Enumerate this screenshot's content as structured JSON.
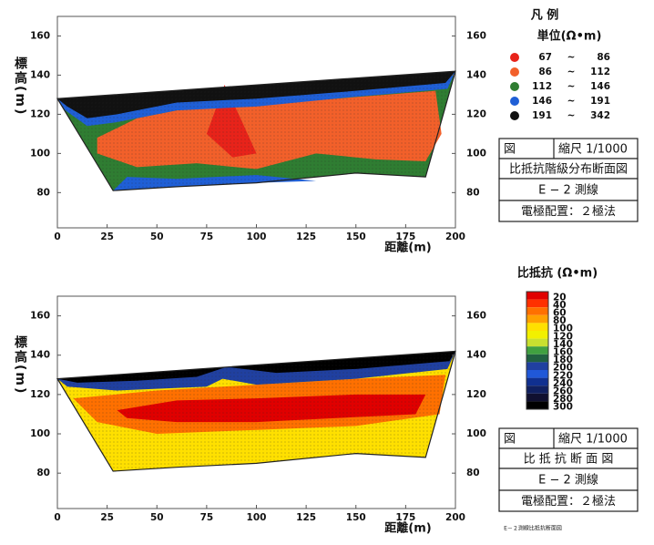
{
  "chart_data": [
    {
      "type": "section",
      "x_label": "距離(m)",
      "y_label": "標高(m)",
      "xlim": [
        0,
        200
      ],
      "ylim": [
        62,
        170
      ],
      "xticks": [
        0,
        25,
        50,
        75,
        100,
        125,
        150,
        175,
        200
      ],
      "yticks": [
        80,
        100,
        120,
        140,
        160
      ],
      "y2lim": [
        62,
        170
      ],
      "y2ticks": [
        80,
        100,
        120,
        140,
        160
      ],
      "legend": {
        "title": "凡 例",
        "unit": "単位(Ω•m)",
        "separator": "~",
        "classes": [
          {
            "min": 67,
            "max": 86,
            "color": "#e8231a"
          },
          {
            "min": 86,
            "max": 112,
            "color": "#f2602a"
          },
          {
            "min": 112,
            "max": 146,
            "color": "#2f7d32"
          },
          {
            "min": 146,
            "max": 191,
            "color": "#1f5fd6"
          },
          {
            "min": 191,
            "max": 342,
            "color": "#111111"
          }
        ]
      },
      "outline": {
        "x": [
          0,
          200,
          185,
          150,
          100,
          60,
          28
        ],
        "y": [
          128,
          142,
          88,
          90,
          85,
          83,
          81
        ]
      },
      "zones": [
        {
          "range": [
            112,
            146
          ],
          "x": [
            0,
            200,
            185,
            150,
            100,
            60,
            28
          ],
          "y": [
            128,
            142,
            88,
            90,
            85,
            83,
            81
          ]
        },
        {
          "range": [
            146,
            191
          ],
          "x": [
            28,
            60,
            100,
            130,
            100,
            60,
            35
          ],
          "y": [
            81,
            83,
            85,
            86,
            89,
            87,
            88
          ]
        },
        {
          "range": [
            86,
            112
          ],
          "x": [
            20,
            40,
            80,
            100,
            140,
            190,
            193,
            185,
            160,
            130,
            100,
            70,
            40,
            20
          ],
          "y": [
            108,
            118,
            126,
            125,
            128,
            132,
            110,
            96,
            97,
            100,
            92,
            95,
            93,
            100
          ]
        },
        {
          "range": [
            67,
            86
          ],
          "x": [
            75,
            84,
            92,
            100,
            88
          ],
          "y": [
            110,
            135,
            118,
            100,
            98
          ]
        },
        {
          "range": [
            146,
            191
          ],
          "x": [
            0,
            200,
            196,
            150,
            100,
            60,
            30,
            15,
            4
          ],
          "y": [
            128,
            142,
            133,
            129,
            124,
            122,
            116,
            114,
            122
          ]
        },
        {
          "range": [
            191,
            342
          ],
          "x": [
            0,
            200,
            195,
            150,
            100,
            60,
            30,
            15,
            5
          ],
          "y": [
            128,
            142,
            136,
            132,
            128,
            126,
            120,
            118,
            124
          ]
        }
      ],
      "info_box": {
        "figure": "図",
        "scale": "縮尺 1/1000",
        "title": "比抵抗階級分布断面図",
        "line": "E − 2 測線",
        "electrode": "電極配置：２極法"
      }
    },
    {
      "type": "section",
      "x_label": "距離(m)",
      "y_label": "標高(m)",
      "xlim": [
        0,
        200
      ],
      "ylim": [
        62,
        170
      ],
      "xticks": [
        0,
        25,
        50,
        75,
        100,
        125,
        150,
        175,
        200
      ],
      "yticks": [
        80,
        100,
        120,
        140,
        160
      ],
      "y2lim": [
        62,
        170
      ],
      "y2ticks": [
        80,
        100,
        120,
        140,
        160
      ],
      "colorbar": {
        "title": "比抵抗 (Ω•m)",
        "ticks": [
          20,
          40,
          60,
          80,
          100,
          120,
          140,
          160,
          180,
          200,
          220,
          240,
          260,
          280,
          300
        ],
        "colors": [
          "#e00000",
          "#ff3000",
          "#ff7000",
          "#ffa000",
          "#ffe000",
          "#f2f000",
          "#c8e030",
          "#40a040",
          "#206040",
          "#2040a0",
          "#2058d8",
          "#103090",
          "#102060",
          "#101030",
          "#000000"
        ]
      },
      "outline": {
        "x": [
          0,
          200,
          185,
          150,
          100,
          60,
          28
        ],
        "y": [
          128,
          142,
          88,
          90,
          85,
          83,
          81
        ]
      },
      "zones": [
        {
          "value": 100,
          "x": [
            0,
            200,
            185,
            150,
            100,
            60,
            28
          ],
          "y": [
            128,
            142,
            88,
            90,
            85,
            83,
            81
          ]
        },
        {
          "value": 60,
          "x": [
            8,
            50,
            100,
            150,
            195,
            192,
            150,
            100,
            50,
            20
          ],
          "y": [
            118,
            122,
            125,
            128,
            130,
            110,
            104,
            102,
            100,
            106
          ]
        },
        {
          "value": 20,
          "x": [
            30,
            60,
            100,
            150,
            185,
            180,
            140,
            100,
            60,
            35
          ],
          "y": [
            112,
            117,
            118,
            120,
            120,
            110,
            108,
            106,
            106,
            108
          ]
        },
        {
          "value": 200,
          "x": [
            0,
            200,
            196,
            150,
            100,
            83,
            75,
            30,
            5
          ],
          "y": [
            128,
            142,
            133,
            128,
            125,
            128,
            124,
            122,
            124
          ]
        },
        {
          "value": 300,
          "x": [
            0,
            200,
            197,
            150,
            110,
            85,
            70,
            40,
            10
          ],
          "y": [
            128,
            142,
            137,
            133,
            131,
            134,
            129,
            127,
            126
          ]
        }
      ],
      "info_box": {
        "figure": "図",
        "scale": "縮尺 1/1000",
        "title": "比 抵 抗 断 面 図",
        "line": "E − 2 測線",
        "electrode": "電極配置：２極法"
      },
      "caption": "E－２測線比抵抗断面図"
    }
  ]
}
